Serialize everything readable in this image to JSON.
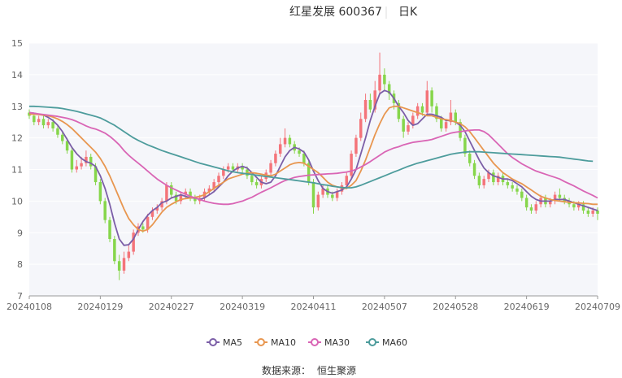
{
  "header": {
    "title": "红星发展 600367",
    "period": "日K"
  },
  "source": {
    "label": "数据来源：",
    "value": "恒生聚源"
  },
  "chart_data": {
    "type": "candlestick",
    "ylim": [
      7,
      15
    ],
    "yticks": [
      7,
      8,
      9,
      10,
      11,
      12,
      13,
      14,
      15
    ],
    "xtick_labels": [
      "20240108",
      "20240129",
      "20240227",
      "20240319",
      "20240411",
      "20240507",
      "20240528",
      "20240619",
      "20240709"
    ],
    "xtick_index": [
      0,
      15,
      30,
      45,
      60,
      75,
      90,
      105,
      120
    ],
    "grid": true,
    "legend_position": "bottom",
    "colors": {
      "up": "#f4747a",
      "down": "#86d64b",
      "ma5": "#7b5ea7",
      "ma10": "#e8964f",
      "ma30": "#d965b5",
      "ma60": "#4d9c9c"
    },
    "candles": [
      [
        12.8,
        12.7,
        12.9,
        12.6
      ],
      [
        12.7,
        12.5,
        12.8,
        12.4
      ],
      [
        12.5,
        12.6,
        12.7,
        12.4
      ],
      [
        12.6,
        12.4,
        12.7,
        12.3
      ],
      [
        12.4,
        12.5,
        12.6,
        12.3
      ],
      [
        12.5,
        12.3,
        12.6,
        12.2
      ],
      [
        12.3,
        12.1,
        12.4,
        12.0
      ],
      [
        12.1,
        11.9,
        12.2,
        11.8
      ],
      [
        11.9,
        11.6,
        12.0,
        11.5
      ],
      [
        11.6,
        11.0,
        11.7,
        10.9
      ],
      [
        11.0,
        11.1,
        11.3,
        10.9
      ],
      [
        11.1,
        11.2,
        11.4,
        11.0
      ],
      [
        11.2,
        11.4,
        11.6,
        11.1
      ],
      [
        11.4,
        11.1,
        11.5,
        11.0
      ],
      [
        11.1,
        10.6,
        11.2,
        10.5
      ],
      [
        10.6,
        10.0,
        10.7,
        9.9
      ],
      [
        10.0,
        9.4,
        10.1,
        9.3
      ],
      [
        9.4,
        8.8,
        9.5,
        8.7
      ],
      [
        8.8,
        8.1,
        8.9,
        8.0
      ],
      [
        8.1,
        7.8,
        8.3,
        7.5
      ],
      [
        7.8,
        8.2,
        8.4,
        7.7
      ],
      [
        8.2,
        8.4,
        8.6,
        8.1
      ],
      [
        8.4,
        9.0,
        9.1,
        8.3
      ],
      [
        9.0,
        9.2,
        9.3,
        8.9
      ],
      [
        9.2,
        9.1,
        9.3,
        9.0
      ],
      [
        9.1,
        9.5,
        9.6,
        9.0
      ],
      [
        9.5,
        9.7,
        9.8,
        9.4
      ],
      [
        9.7,
        9.8,
        9.9,
        9.6
      ],
      [
        9.8,
        10.0,
        10.1,
        9.7
      ],
      [
        10.0,
        10.5,
        10.6,
        9.9
      ],
      [
        10.5,
        10.2,
        10.6,
        10.1
      ],
      [
        10.2,
        10.0,
        10.3,
        9.9
      ],
      [
        10.0,
        10.2,
        10.3,
        9.9
      ],
      [
        10.2,
        10.3,
        10.4,
        10.1
      ],
      [
        10.3,
        10.1,
        10.4,
        10.0
      ],
      [
        10.1,
        10.0,
        10.2,
        9.9
      ],
      [
        10.0,
        10.1,
        10.2,
        9.9
      ],
      [
        10.1,
        10.3,
        10.4,
        10.0
      ],
      [
        10.3,
        10.4,
        10.5,
        10.2
      ],
      [
        10.4,
        10.6,
        10.7,
        10.3
      ],
      [
        10.6,
        10.8,
        10.9,
        10.5
      ],
      [
        10.8,
        11.0,
        11.1,
        10.7
      ],
      [
        11.0,
        11.1,
        11.2,
        10.9
      ],
      [
        11.1,
        11.0,
        11.2,
        10.9
      ],
      [
        11.0,
        11.1,
        11.2,
        10.9
      ],
      [
        11.1,
        11.0,
        11.2,
        10.9
      ],
      [
        11.0,
        10.8,
        11.1,
        10.7
      ],
      [
        10.8,
        10.6,
        10.9,
        10.5
      ],
      [
        10.6,
        10.5,
        10.7,
        10.4
      ],
      [
        10.5,
        10.7,
        10.8,
        10.4
      ],
      [
        10.7,
        10.9,
        11.0,
        10.6
      ],
      [
        10.9,
        11.2,
        11.3,
        10.8
      ],
      [
        11.2,
        11.5,
        11.6,
        11.1
      ],
      [
        11.5,
        11.8,
        12.0,
        11.4
      ],
      [
        11.8,
        12.0,
        12.3,
        11.7
      ],
      [
        12.0,
        11.8,
        12.1,
        11.7
      ],
      [
        11.8,
        11.6,
        11.9,
        11.5
      ],
      [
        11.6,
        11.5,
        11.7,
        11.4
      ],
      [
        11.5,
        11.2,
        11.6,
        11.1
      ],
      [
        11.2,
        10.6,
        11.3,
        10.5
      ],
      [
        10.6,
        9.8,
        10.7,
        9.6
      ],
      [
        9.8,
        10.2,
        10.3,
        9.7
      ],
      [
        10.2,
        10.4,
        10.5,
        10.1
      ],
      [
        10.4,
        10.2,
        10.5,
        10.1
      ],
      [
        10.2,
        10.1,
        10.3,
        10.0
      ],
      [
        10.1,
        10.3,
        10.4,
        10.0
      ],
      [
        10.3,
        10.5,
        10.6,
        10.2
      ],
      [
        10.5,
        10.8,
        10.9,
        10.4
      ],
      [
        10.8,
        11.5,
        11.6,
        10.7
      ],
      [
        11.5,
        12.0,
        12.1,
        11.4
      ],
      [
        12.0,
        12.6,
        12.8,
        11.9
      ],
      [
        12.6,
        13.2,
        13.4,
        12.5
      ],
      [
        13.2,
        12.9,
        13.4,
        12.8
      ],
      [
        12.9,
        13.5,
        13.8,
        12.8
      ],
      [
        13.5,
        14.0,
        14.7,
        13.4
      ],
      [
        14.0,
        13.7,
        14.2,
        13.5
      ],
      [
        13.7,
        13.4,
        13.8,
        13.2
      ],
      [
        13.4,
        13.1,
        13.5,
        12.9
      ],
      [
        13.1,
        12.6,
        13.2,
        12.5
      ],
      [
        12.6,
        12.2,
        12.7,
        12.0
      ],
      [
        12.2,
        12.4,
        12.5,
        12.1
      ],
      [
        12.4,
        12.7,
        12.8,
        12.3
      ],
      [
        12.7,
        13.0,
        13.1,
        12.6
      ],
      [
        13.0,
        12.8,
        13.1,
        12.7
      ],
      [
        12.8,
        13.5,
        13.8,
        12.7
      ],
      [
        13.5,
        13.0,
        13.6,
        12.8
      ],
      [
        13.0,
        12.6,
        13.1,
        12.5
      ],
      [
        12.6,
        12.3,
        12.7,
        12.2
      ],
      [
        12.3,
        12.5,
        12.6,
        12.2
      ],
      [
        12.5,
        12.8,
        13.2,
        12.4
      ],
      [
        12.8,
        12.5,
        12.9,
        12.4
      ],
      [
        12.5,
        12.0,
        12.6,
        11.9
      ],
      [
        12.0,
        11.5,
        12.1,
        11.4
      ],
      [
        11.5,
        11.2,
        11.6,
        11.1
      ],
      [
        11.2,
        10.8,
        11.3,
        10.7
      ],
      [
        10.8,
        10.5,
        10.9,
        10.4
      ],
      [
        10.5,
        10.7,
        10.8,
        10.4
      ],
      [
        10.7,
        10.9,
        11.0,
        10.6
      ],
      [
        10.9,
        10.6,
        11.0,
        10.5
      ],
      [
        10.6,
        10.8,
        10.9,
        10.5
      ],
      [
        10.8,
        10.6,
        10.9,
        10.5
      ],
      [
        10.6,
        10.5,
        10.7,
        10.4
      ],
      [
        10.5,
        10.4,
        10.6,
        10.3
      ],
      [
        10.4,
        10.3,
        10.5,
        10.2
      ],
      [
        10.3,
        10.1,
        10.4,
        10.0
      ],
      [
        10.1,
        9.8,
        10.2,
        9.7
      ],
      [
        9.8,
        9.7,
        9.9,
        9.6
      ],
      [
        9.7,
        9.9,
        10.0,
        9.6
      ],
      [
        9.9,
        10.1,
        10.2,
        9.8
      ],
      [
        10.1,
        9.9,
        10.2,
        9.8
      ],
      [
        9.9,
        10.0,
        10.1,
        9.8
      ],
      [
        10.0,
        10.2,
        10.3,
        9.9
      ],
      [
        10.2,
        10.1,
        10.4,
        10.0
      ],
      [
        10.1,
        10.0,
        10.2,
        9.9
      ],
      [
        10.0,
        9.9,
        10.1,
        9.8
      ],
      [
        9.9,
        9.8,
        10.0,
        9.7
      ],
      [
        9.8,
        9.9,
        10.0,
        9.7
      ],
      [
        9.9,
        9.7,
        10.0,
        9.6
      ],
      [
        9.7,
        9.6,
        9.8,
        9.5
      ],
      [
        9.6,
        9.7,
        9.8,
        9.5
      ],
      [
        9.7,
        9.6,
        9.8,
        9.4
      ]
    ],
    "series": [
      {
        "name": "MA5",
        "values": [
          12.8,
          12.78,
          12.75,
          12.72,
          12.65,
          12.55,
          12.4,
          12.2,
          11.95,
          11.7,
          11.5,
          11.35,
          11.25,
          11.2,
          11.1,
          10.8,
          10.4,
          9.9,
          9.3,
          8.8,
          8.6,
          8.62,
          8.8,
          9.1,
          9.35,
          9.55,
          9.7,
          9.8,
          9.95,
          10.0,
          10.1,
          10.15,
          10.2,
          10.15,
          10.1,
          10.1,
          10.05,
          10.1,
          10.2,
          10.3,
          10.45,
          10.6,
          10.8,
          10.95,
          11.05,
          11.1,
          11.05,
          10.9,
          10.75,
          10.6,
          10.55,
          10.6,
          10.8,
          11.1,
          11.4,
          11.6,
          11.7,
          11.65,
          11.55,
          11.3,
          10.95,
          10.65,
          10.4,
          10.3,
          10.25,
          10.3,
          10.35,
          10.45,
          10.7,
          11.0,
          11.5,
          12.0,
          12.55,
          13.0,
          13.4,
          13.5,
          13.45,
          13.25,
          13.0,
          12.8,
          12.55,
          12.4,
          12.45,
          12.6,
          12.75,
          12.75,
          12.7,
          12.65,
          12.55,
          12.55,
          12.5,
          12.4,
          12.2,
          11.9,
          11.6,
          11.3,
          11.05,
          10.9,
          10.8,
          10.75,
          10.7,
          10.7,
          10.65,
          10.55,
          10.45,
          10.3,
          10.15,
          10.05,
          10.0,
          10.0,
          10.0,
          10.05,
          10.05,
          10.05,
          10.0,
          9.95,
          9.9,
          9.85,
          9.8,
          9.75,
          9.7
        ]
      },
      {
        "name": "MA10",
        "values": [
          12.75,
          12.75,
          12.74,
          12.72,
          12.7,
          12.66,
          12.6,
          12.52,
          12.42,
          12.3,
          12.15,
          12.0,
          11.85,
          11.7,
          11.55,
          11.35,
          11.1,
          10.8,
          10.45,
          10.1,
          9.75,
          9.45,
          9.25,
          9.1,
          9.05,
          9.1,
          9.25,
          9.45,
          9.65,
          9.8,
          9.9,
          9.98,
          10.05,
          10.08,
          10.1,
          10.12,
          10.15,
          10.2,
          10.3,
          10.4,
          10.5,
          10.6,
          10.7,
          10.75,
          10.8,
          10.85,
          10.88,
          10.9,
          10.88,
          10.85,
          10.82,
          10.8,
          10.85,
          10.95,
          11.05,
          11.15,
          11.2,
          11.22,
          11.2,
          11.1,
          11.0,
          10.9,
          10.75,
          10.6,
          10.5,
          10.45,
          10.42,
          10.4,
          10.5,
          10.65,
          10.95,
          11.3,
          11.7,
          12.1,
          12.45,
          12.75,
          12.95,
          13.0,
          13.0,
          12.95,
          12.9,
          12.85,
          12.8,
          12.75,
          12.7,
          12.7,
          12.65,
          12.6,
          12.58,
          12.55,
          12.5,
          12.45,
          12.35,
          12.2,
          12.0,
          11.8,
          11.6,
          11.4,
          11.2,
          11.05,
          10.9,
          10.8,
          10.7,
          10.62,
          10.55,
          10.45,
          10.35,
          10.25,
          10.15,
          10.1,
          10.05,
          10.02,
          10.0,
          9.98,
          9.96,
          9.95,
          9.94,
          9.93,
          9.92,
          9.9,
          9.9
        ]
      },
      {
        "name": "MA30",
        "values": [
          12.8,
          12.78,
          12.76,
          12.74,
          12.72,
          12.7,
          12.68,
          12.65,
          12.62,
          12.58,
          12.52,
          12.45,
          12.38,
          12.32,
          12.28,
          12.22,
          12.15,
          12.05,
          11.92,
          11.78,
          11.6,
          11.45,
          11.32,
          11.2,
          11.08,
          10.95,
          10.82,
          10.7,
          10.6,
          10.5,
          10.42,
          10.35,
          10.28,
          10.22,
          10.15,
          10.1,
          10.05,
          10.0,
          9.96,
          9.93,
          9.91,
          9.9,
          9.9,
          9.92,
          9.96,
          10.0,
          10.06,
          10.12,
          10.2,
          10.28,
          10.35,
          10.42,
          10.5,
          10.58,
          10.65,
          10.7,
          10.75,
          10.78,
          10.8,
          10.82,
          10.83,
          10.84,
          10.85,
          10.86,
          10.87,
          10.88,
          10.9,
          10.92,
          10.95,
          11.0,
          11.08,
          11.16,
          11.25,
          11.35,
          11.45,
          11.55,
          11.62,
          11.68,
          11.72,
          11.78,
          11.82,
          11.86,
          11.88,
          11.9,
          11.92,
          11.95,
          12.0,
          12.05,
          12.1,
          12.15,
          12.18,
          12.2,
          12.22,
          12.24,
          12.25,
          12.25,
          12.2,
          12.1,
          11.95,
          11.8,
          11.65,
          11.5,
          11.38,
          11.28,
          11.18,
          11.1,
          11.02,
          10.95,
          10.9,
          10.85,
          10.8,
          10.75,
          10.7,
          10.62,
          10.55,
          10.48,
          10.4,
          10.32,
          10.25,
          10.18,
          10.1
        ]
      },
      {
        "name": "MA60",
        "values": [
          13.0,
          13.0,
          12.99,
          12.98,
          12.97,
          12.96,
          12.95,
          12.93,
          12.9,
          12.87,
          12.84,
          12.8,
          12.76,
          12.72,
          12.68,
          12.63,
          12.56,
          12.48,
          12.4,
          12.3,
          12.2,
          12.1,
          12.0,
          11.92,
          11.85,
          11.78,
          11.72,
          11.66,
          11.6,
          11.55,
          11.5,
          11.45,
          11.4,
          11.35,
          11.3,
          11.25,
          11.2,
          11.16,
          11.12,
          11.08,
          11.04,
          11.0,
          10.96,
          10.93,
          10.9,
          10.88,
          10.86,
          10.84,
          10.82,
          10.8,
          10.78,
          10.76,
          10.74,
          10.72,
          10.7,
          10.68,
          10.66,
          10.64,
          10.62,
          10.6,
          10.58,
          10.55,
          10.52,
          10.5,
          10.47,
          10.45,
          10.43,
          10.42,
          10.42,
          10.45,
          10.5,
          10.56,
          10.62,
          10.68,
          10.74,
          10.8,
          10.86,
          10.92,
          10.98,
          11.04,
          11.1,
          11.15,
          11.2,
          11.24,
          11.28,
          11.32,
          11.36,
          11.4,
          11.44,
          11.48,
          11.51,
          11.53,
          11.55,
          11.56,
          11.56,
          11.56,
          11.55,
          11.54,
          11.53,
          11.52,
          11.51,
          11.5,
          11.49,
          11.48,
          11.47,
          11.46,
          11.45,
          11.44,
          11.43,
          11.42,
          11.41,
          11.4,
          11.39,
          11.37,
          11.35,
          11.33,
          11.31,
          11.29,
          11.27,
          11.26
        ]
      }
    ]
  }
}
